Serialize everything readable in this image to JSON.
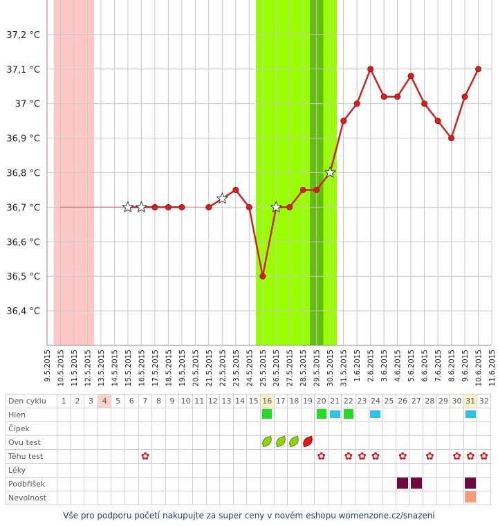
{
  "chart_data": {
    "type": "line",
    "ylabel": "",
    "xlabel": "",
    "ylim": [
      36.3,
      37.3
    ],
    "y_ticks": [
      "36,4 °C",
      "36,5 °C",
      "36,6 °C",
      "36,7 °C",
      "36,8 °C",
      "36,9 °C",
      "37 °C",
      "37,1 °C",
      "37,2 °C"
    ],
    "y_tick_values": [
      36.4,
      36.5,
      36.6,
      36.7,
      36.8,
      36.9,
      37.0,
      37.1,
      37.2
    ],
    "x_dates": [
      "9.5.2015",
      "10.5.2015",
      "11.5.2015",
      "12.5.2015",
      "13.5.2015",
      "14.5.2015",
      "15.5.2015",
      "16.5.2015",
      "17.5.2015",
      "18.5.2015",
      "19.5.2015",
      "20.5.2015",
      "21.5.2015",
      "22.5.2015",
      "23.5.2015",
      "24.5.2015",
      "25.5.2015",
      "26.5.2015",
      "27.5.2015",
      "28.5.2015",
      "29.5.2015",
      "30.5.2015",
      "31.5.2015",
      "1.6.2015",
      "2.6.2015",
      "3.6.2015",
      "4.6.2015",
      "5.6.2015",
      "6.6.2015",
      "7.6.2015",
      "8.6.2015",
      "9.6.2015",
      "10.6.2015",
      "11.6.2015"
    ],
    "bands": [
      {
        "from": "10.5.2015",
        "to": "12.5.2015",
        "color": "#ffc8c8"
      },
      {
        "from": "25.5.2015",
        "to": "30.5.2015",
        "color": "#99ff00"
      },
      {
        "from": "29.5.2015",
        "to": "29.5.2015",
        "color": "#66bb11"
      }
    ],
    "series": [
      {
        "dotted_segment": [
          {
            "x": "10.5.2015",
            "y": 36.7
          },
          {
            "x": "15.5.2015",
            "y": 36.7
          }
        ],
        "points": [
          {
            "x": "15.5.2015",
            "y": 36.7,
            "marker": "star"
          },
          {
            "x": "16.5.2015",
            "y": 36.7,
            "marker": "star"
          },
          {
            "x": "17.5.2015",
            "y": 36.7,
            "marker": "dot"
          },
          {
            "x": "18.5.2015",
            "y": 36.7,
            "marker": "dot"
          },
          {
            "x": "19.5.2015",
            "y": 36.7,
            "marker": "dot"
          },
          {
            "x": "21.5.2015",
            "y": 36.7,
            "marker": "dot"
          },
          {
            "x": "22.5.2015",
            "y": 36.725,
            "marker": "star"
          },
          {
            "x": "23.5.2015",
            "y": 36.75,
            "marker": "dot"
          },
          {
            "x": "24.5.2015",
            "y": 36.7,
            "marker": "dot"
          },
          {
            "x": "25.5.2015",
            "y": 36.5,
            "marker": "dot"
          },
          {
            "x": "26.5.2015",
            "y": 36.7,
            "marker": "star"
          },
          {
            "x": "27.5.2015",
            "y": 36.7,
            "marker": "dot"
          },
          {
            "x": "28.5.2015",
            "y": 36.75,
            "marker": "dot"
          },
          {
            "x": "29.5.2015",
            "y": 36.75,
            "marker": "dot"
          },
          {
            "x": "30.5.2015",
            "y": 36.8,
            "marker": "star"
          },
          {
            "x": "31.5.2015",
            "y": 36.95,
            "marker": "dot"
          },
          {
            "x": "1.6.2015",
            "y": 37.0,
            "marker": "dot"
          },
          {
            "x": "2.6.2015",
            "y": 37.1,
            "marker": "dot"
          },
          {
            "x": "3.6.2015",
            "y": 37.02,
            "marker": "dot"
          },
          {
            "x": "4.6.2015",
            "y": 37.02,
            "marker": "dot"
          },
          {
            "x": "5.6.2015",
            "y": 37.08,
            "marker": "dot"
          },
          {
            "x": "6.6.2015",
            "y": 37.0,
            "marker": "dot"
          },
          {
            "x": "7.6.2015",
            "y": 36.95,
            "marker": "dot"
          },
          {
            "x": "8.6.2015",
            "y": 36.9,
            "marker": "dot"
          },
          {
            "x": "9.6.2015",
            "y": 37.02,
            "marker": "dot"
          },
          {
            "x": "10.6.2015",
            "y": 37.1,
            "marker": "dot"
          }
        ]
      }
    ],
    "grid": true,
    "line_color": "#cc2222"
  },
  "table": {
    "row_labels": [
      "Den cyklu",
      "Hlen",
      "Čípek",
      "Ovu test",
      "Těhu test",
      "Léky",
      "Podbřišek",
      "Nevolnost"
    ],
    "days": [
      "1",
      "2",
      "3",
      "4",
      "5",
      "6",
      "7",
      "8",
      "9",
      "10",
      "11",
      "12",
      "13",
      "14",
      "15",
      "16",
      "17",
      "18",
      "19",
      "20",
      "21",
      "22",
      "23",
      "24",
      "25",
      "26",
      "27",
      "28",
      "29",
      "30",
      "31",
      "32"
    ],
    "highlight_days": {
      "4": "pink",
      "16": "yellow",
      "31": "yellow"
    },
    "marks": {
      "Hlen": {
        "16": "green",
        "20": "green",
        "21": "cyan",
        "22": "green",
        "24": "cyan",
        "31": "cyan"
      },
      "Ovu test": {
        "16": "leaf-green",
        "17": "leaf-green",
        "18": "leaf-green",
        "19": "leaf-red"
      },
      "Těhu test": {
        "7": "flower",
        "20": "flower",
        "22": "flower",
        "23": "flower",
        "24": "flower",
        "26": "flower",
        "28": "flower",
        "30": "flower",
        "31": "flower",
        "32": "flower"
      },
      "Podbřišek": {
        "26": "purple",
        "27": "purple",
        "31": "purple"
      },
      "Nevolnost": {
        "31": "salmon"
      }
    }
  },
  "footer": "Vše pro podporu početí nakupujte za super ceny v novém eshopu womenzone.cz/snazeni"
}
